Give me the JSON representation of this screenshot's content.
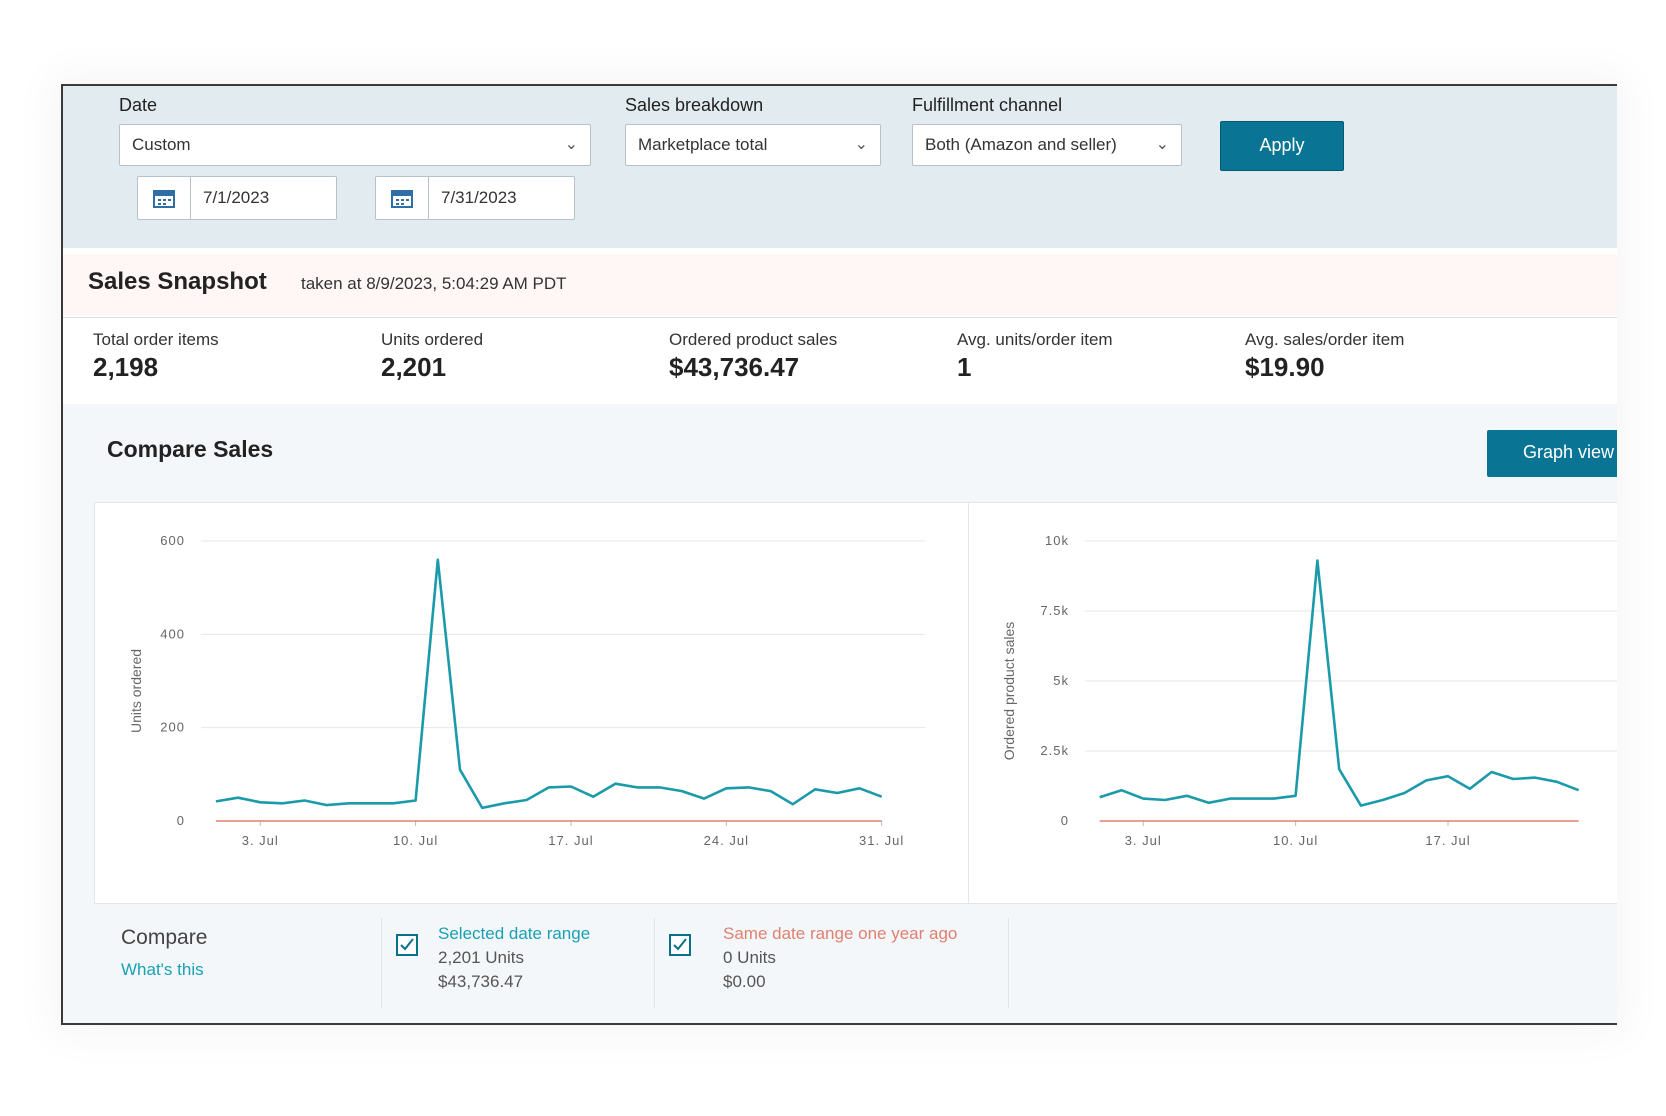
{
  "filters": {
    "date_label": "Date",
    "date_value": "Custom",
    "start_date": "7/1/2023",
    "end_date": "7/31/2023",
    "breakdown_label": "Sales breakdown",
    "breakdown_value": "Marketplace total",
    "channel_label": "Fulfillment channel",
    "channel_value": "Both (Amazon and seller)",
    "apply_label": "Apply"
  },
  "snapshot": {
    "title": "Sales Snapshot",
    "taken": "taken at 8/9/2023, 5:04:29 AM PDT",
    "metrics": [
      {
        "label": "Total order items",
        "value": "2,198"
      },
      {
        "label": "Units ordered",
        "value": "2,201"
      },
      {
        "label": "Ordered product sales",
        "value": "$43,736.47"
      },
      {
        "label": "Avg. units/order item",
        "value": "1"
      },
      {
        "label": "Avg. sales/order item",
        "value": "$19.90"
      }
    ]
  },
  "compare": {
    "title": "Compare Sales",
    "graph_view_label": "Graph view",
    "compare_label": "Compare",
    "whats_this": "What's this",
    "selected": {
      "title": "Selected date range",
      "units": "2,201 Units",
      "sales": "$43,736.47"
    },
    "last_year": {
      "title": "Same date range one year ago",
      "units": "0 Units",
      "sales": "$0.00"
    }
  },
  "colors": {
    "accent": "#0a7494",
    "series_current": "#1b9aaa",
    "series_last_year": "#e08070",
    "link": "#19a0b4"
  },
  "chart_data": [
    {
      "type": "line",
      "ylabel": "Units ordered",
      "xlabel": "",
      "ylim": [
        0,
        600
      ],
      "yticks": [
        "0",
        "200",
        "400",
        "600"
      ],
      "xticks": [
        "3. Jul",
        "10. Jul",
        "17. Jul",
        "24. Jul",
        "31. Jul"
      ],
      "grid": true,
      "x": [
        1,
        2,
        3,
        4,
        5,
        6,
        7,
        8,
        9,
        10,
        11,
        12,
        13,
        14,
        15,
        16,
        17,
        18,
        19,
        20,
        21,
        22,
        23,
        24,
        25,
        26,
        27,
        28,
        29,
        30,
        31
      ],
      "series": [
        {
          "values": [
            42,
            50,
            40,
            38,
            44,
            34,
            38,
            38,
            38,
            44,
            560,
            110,
            28,
            38,
            45,
            72,
            74,
            52,
            80,
            72,
            72,
            64,
            48,
            70,
            72,
            64,
            36,
            68,
            60,
            70,
            52
          ]
        },
        {
          "values": [
            0,
            0,
            0,
            0,
            0,
            0,
            0,
            0,
            0,
            0,
            0,
            0,
            0,
            0,
            0,
            0,
            0,
            0,
            0,
            0,
            0,
            0,
            0,
            0,
            0,
            0,
            0,
            0,
            0,
            0,
            0
          ]
        }
      ]
    },
    {
      "type": "line",
      "ylabel": "Ordered product sales",
      "xlabel": "",
      "ylim": [
        0,
        10000
      ],
      "yticks": [
        "0",
        "2.5k",
        "5k",
        "7.5k",
        "10k"
      ],
      "xticks": [
        "3. Jul",
        "10. Jul",
        "17. Jul"
      ],
      "grid": true,
      "x": [
        1,
        2,
        3,
        4,
        5,
        6,
        7,
        8,
        9,
        10,
        11,
        12,
        13,
        14,
        15,
        16,
        17,
        18,
        19,
        20,
        21,
        22,
        23
      ],
      "series": [
        {
          "values": [
            850,
            1100,
            800,
            750,
            900,
            650,
            800,
            800,
            800,
            900,
            9300,
            1850,
            550,
            750,
            1000,
            1450,
            1600,
            1150,
            1750,
            1500,
            1550,
            1400,
            1100
          ]
        },
        {
          "values": [
            0,
            0,
            0,
            0,
            0,
            0,
            0,
            0,
            0,
            0,
            0,
            0,
            0,
            0,
            0,
            0,
            0,
            0,
            0,
            0,
            0,
            0,
            0
          ]
        }
      ]
    }
  ]
}
